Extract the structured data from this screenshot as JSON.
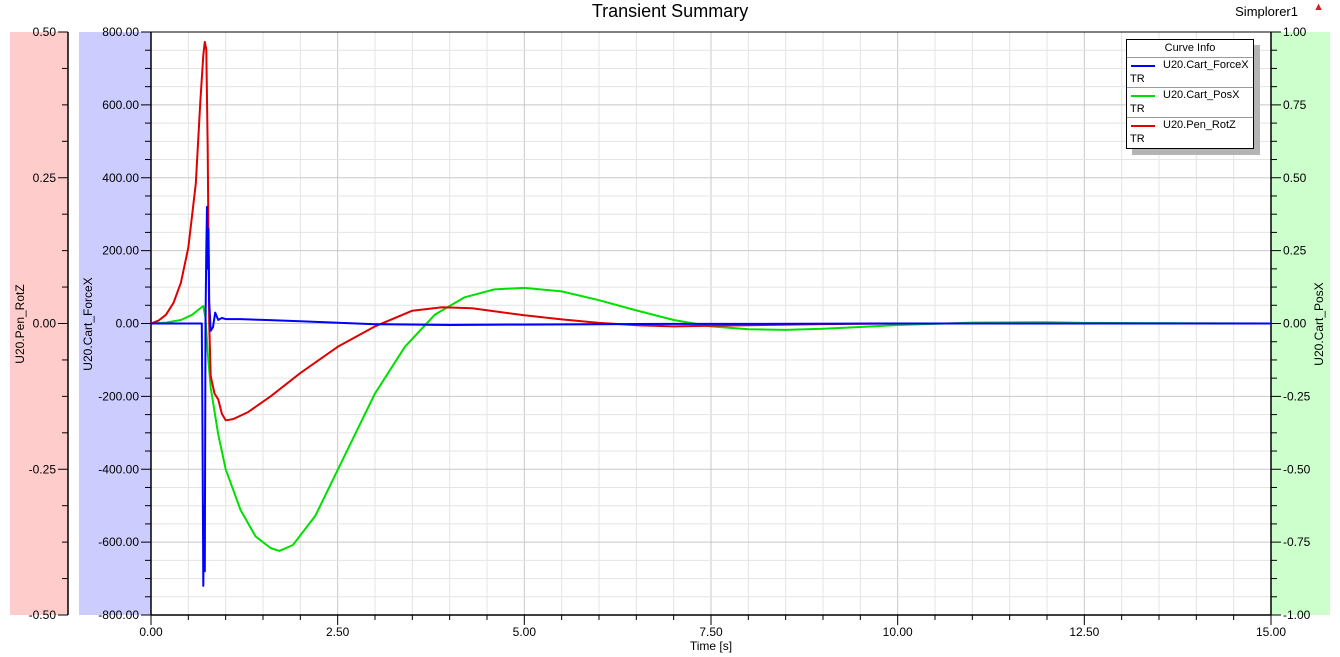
{
  "header": {
    "title": "Transient Summary",
    "project": "Simplorer1",
    "warning_icon": "warning-triangle-icon"
  },
  "legend": {
    "title": "Curve Info",
    "items": [
      {
        "name": "U20.Cart_ForceX",
        "sub": "TR",
        "color": "#0000ff"
      },
      {
        "name": "U20.Cart_PosX",
        "sub": "TR",
        "color": "#00e000"
      },
      {
        "name": "U20.Pen_RotZ",
        "sub": "TR",
        "color": "#e00000"
      }
    ]
  },
  "axes": {
    "x": {
      "label": "Time [s]",
      "ticks": [
        "0.00",
        "2.50",
        "5.00",
        "7.50",
        "10.00",
        "12.50",
        "15.00"
      ]
    },
    "y_left_outer": {
      "label": "U20.Pen_RotZ",
      "ticks": [
        "0.50",
        "0.25",
        "0.00",
        "-0.25",
        "-0.50"
      ],
      "color": "#ffcccc"
    },
    "y_left_inner": {
      "label": "U20.Cart_ForceX",
      "ticks": [
        "800.00",
        "600.00",
        "400.00",
        "200.00",
        "0.00",
        "-200.00",
        "-400.00",
        "-600.00",
        "-800.00"
      ],
      "color": "#ccccff"
    },
    "y_right": {
      "label": "U20.Cart_PosX",
      "ticks": [
        "1.00",
        "0.75",
        "0.50",
        "0.25",
        "0.00",
        "-0.25",
        "-0.50",
        "-0.75",
        "-1.00"
      ],
      "color": "#ccffcc"
    }
  },
  "chart_data": {
    "type": "line",
    "title": "Transient Summary",
    "xlabel": "Time [s]",
    "xlim": [
      0,
      15
    ],
    "grid": true,
    "legend_position": "top-right",
    "series": [
      {
        "name": "U20.Cart_ForceX",
        "axis": "y_left_inner",
        "ylabel": "U20.Cart_ForceX",
        "ylim": [
          -800,
          800
        ],
        "color": "#0000ff",
        "x": [
          0,
          0.68,
          0.69,
          0.7,
          0.71,
          0.72,
          0.73,
          0.74,
          0.75,
          0.76,
          0.77,
          0.78,
          0.8,
          0.83,
          0.86,
          0.9,
          0.95,
          1.0,
          1.2,
          1.5,
          2.0,
          2.5,
          3.0,
          4.0,
          5.0,
          6.0,
          7.0,
          8.0,
          10.0,
          15.0
        ],
        "y": [
          0,
          0,
          -300,
          -720,
          -500,
          -680,
          0,
          200,
          320,
          150,
          260,
          60,
          -20,
          -10,
          30,
          10,
          15,
          12,
          12,
          10,
          6,
          2,
          -2,
          -4,
          -3,
          -2,
          -1,
          -1,
          0,
          0
        ]
      },
      {
        "name": "U20.Cart_PosX",
        "axis": "y_right",
        "ylabel": "U20.Cart_PosX",
        "ylim": [
          -1,
          1
        ],
        "color": "#00e000",
        "x": [
          0,
          0.2,
          0.4,
          0.55,
          0.65,
          0.7,
          0.73,
          0.76,
          0.8,
          0.9,
          1.0,
          1.2,
          1.4,
          1.6,
          1.72,
          1.9,
          2.2,
          2.6,
          3.0,
          3.4,
          3.8,
          4.2,
          4.6,
          5.0,
          5.5,
          6.0,
          6.5,
          7.0,
          7.5,
          8.0,
          8.5,
          9.0,
          9.5,
          10.0,
          11.0,
          12.0,
          12.5,
          15.0
        ],
        "y": [
          0,
          0.003,
          0.012,
          0.03,
          0.05,
          0.06,
          0.02,
          -0.1,
          -0.22,
          -0.38,
          -0.5,
          -0.64,
          -0.73,
          -0.77,
          -0.78,
          -0.76,
          -0.66,
          -0.45,
          -0.24,
          -0.08,
          0.03,
          0.09,
          0.117,
          0.122,
          0.11,
          0.08,
          0.045,
          0.012,
          -0.01,
          -0.02,
          -0.022,
          -0.018,
          -0.012,
          -0.005,
          0.003,
          0.004,
          0.002,
          0
        ]
      },
      {
        "name": "U20.Pen_RotZ",
        "axis": "y_left_outer",
        "ylabel": "U20.Pen_RotZ",
        "ylim": [
          -0.5,
          0.5
        ],
        "color": "#e00000",
        "x": [
          0,
          0.1,
          0.2,
          0.3,
          0.4,
          0.5,
          0.6,
          0.66,
          0.7,
          0.72,
          0.74,
          0.76,
          0.78,
          0.8,
          0.85,
          0.9,
          0.95,
          1.0,
          1.1,
          1.3,
          1.6,
          2.0,
          2.5,
          3.0,
          3.5,
          3.9,
          4.3,
          5.0,
          5.5,
          6.0,
          6.5,
          7.0,
          7.5,
          8.0,
          9.0,
          10.0,
          15.0
        ],
        "y": [
          0,
          0.005,
          0.015,
          0.035,
          0.07,
          0.13,
          0.24,
          0.38,
          0.46,
          0.483,
          0.47,
          0.3,
          0.0,
          -0.09,
          -0.12,
          -0.13,
          -0.155,
          -0.166,
          -0.164,
          -0.152,
          -0.125,
          -0.085,
          -0.04,
          -0.005,
          0.022,
          0.028,
          0.026,
          0.014,
          0.007,
          0.001,
          -0.003,
          -0.005,
          -0.004,
          -0.003,
          -0.001,
          0,
          0
        ]
      }
    ]
  }
}
